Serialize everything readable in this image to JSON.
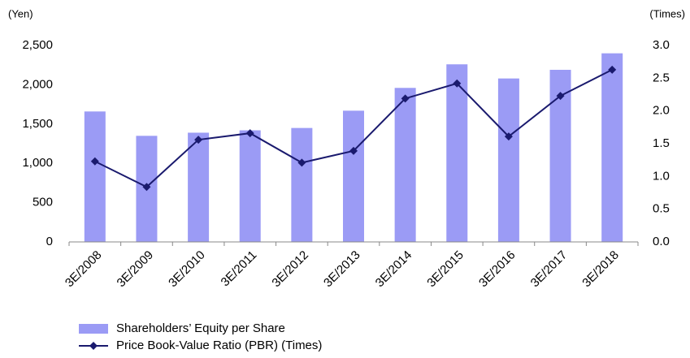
{
  "chart_data": {
    "type": "bar_line",
    "y_label": "(Yen)",
    "y2_label": "(Times)",
    "categories": [
      "3E/2008",
      "3E/2009",
      "3E/2010",
      "3E/2011",
      "3E/2012",
      "3E/2013",
      "3E/2014",
      "3E/2015",
      "3E/2016",
      "3E/2017",
      "3E/2018"
    ],
    "series": [
      {
        "name": "Shareholders’ Equity per Share",
        "type": "bar",
        "color": "#9b9bf5",
        "values": [
          1660,
          1350,
          1390,
          1420,
          1450,
          1670,
          1960,
          2260,
          2080,
          2190,
          2400
        ]
      },
      {
        "name": "Price Book-Value Ratio (PBR) (Times)",
        "type": "line",
        "axis": "y2",
        "color": "#1a1a6e",
        "values": [
          1.23,
          0.84,
          1.56,
          1.66,
          1.21,
          1.39,
          2.19,
          2.42,
          1.61,
          2.23,
          2.63
        ]
      }
    ],
    "ylim": [
      0,
      2500
    ],
    "yticks": [
      0,
      500,
      {
        "value": 1000,
        "label": "1,000"
      },
      {
        "value": 1500,
        "label": "1,500"
      },
      {
        "value": 2000,
        "label": "2,000"
      },
      {
        "value": 2500,
        "label": "2,500"
      }
    ],
    "y2lim": [
      0,
      3
    ],
    "y2ticks": [
      {
        "value": 0,
        "label": "0.0"
      },
      0.5,
      {
        "value": 1,
        "label": "1.0"
      },
      1.5,
      {
        "value": 2,
        "label": "2.0"
      },
      2.5,
      {
        "value": 3,
        "label": "3.0"
      }
    ],
    "grid": false,
    "legend": "bottom-left"
  }
}
